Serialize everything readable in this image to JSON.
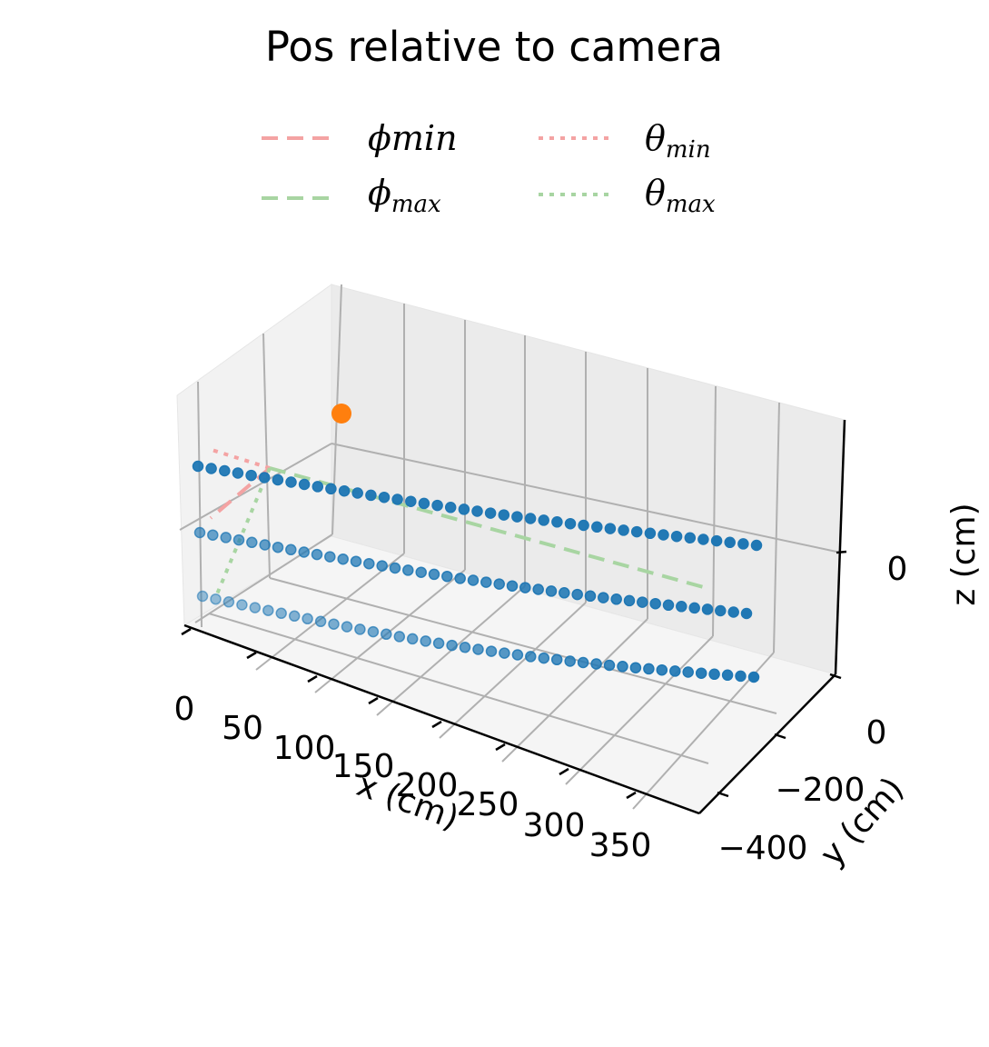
{
  "chart_data": {
    "type": "scatter",
    "projection": "3d",
    "title": "Pos relative to camera",
    "xlabel": "x (cm)",
    "ylabel": "y (cm)",
    "zlabel": "z (cm)",
    "xticks": [
      "0",
      "50",
      "100",
      "150",
      "200",
      "250",
      "300",
      "350"
    ],
    "yticks": [
      "0",
      "−200",
      "−400"
    ],
    "zticks": [
      "0"
    ],
    "grid": true,
    "legend": {
      "placement": "top-center",
      "columns": 2,
      "entries": [
        {
          "base": "ϕmin",
          "sub": "",
          "color": "#f4a3a3",
          "style": "dashed"
        },
        {
          "base": "θ",
          "sub": "min",
          "color": "#f4a3a3",
          "style": "dotted"
        },
        {
          "base": "ϕ",
          "sub": "max",
          "color": "#a8d5a2",
          "style": "dashed"
        },
        {
          "base": "θ",
          "sub": "max",
          "color": "#a8d5a2",
          "style": "dotted"
        }
      ]
    },
    "camera_point": {
      "x": 0,
      "y": 0,
      "z": 0,
      "color": "#ff7f0e"
    },
    "point_color": "#1f77b4",
    "points_per_row": 43
  }
}
